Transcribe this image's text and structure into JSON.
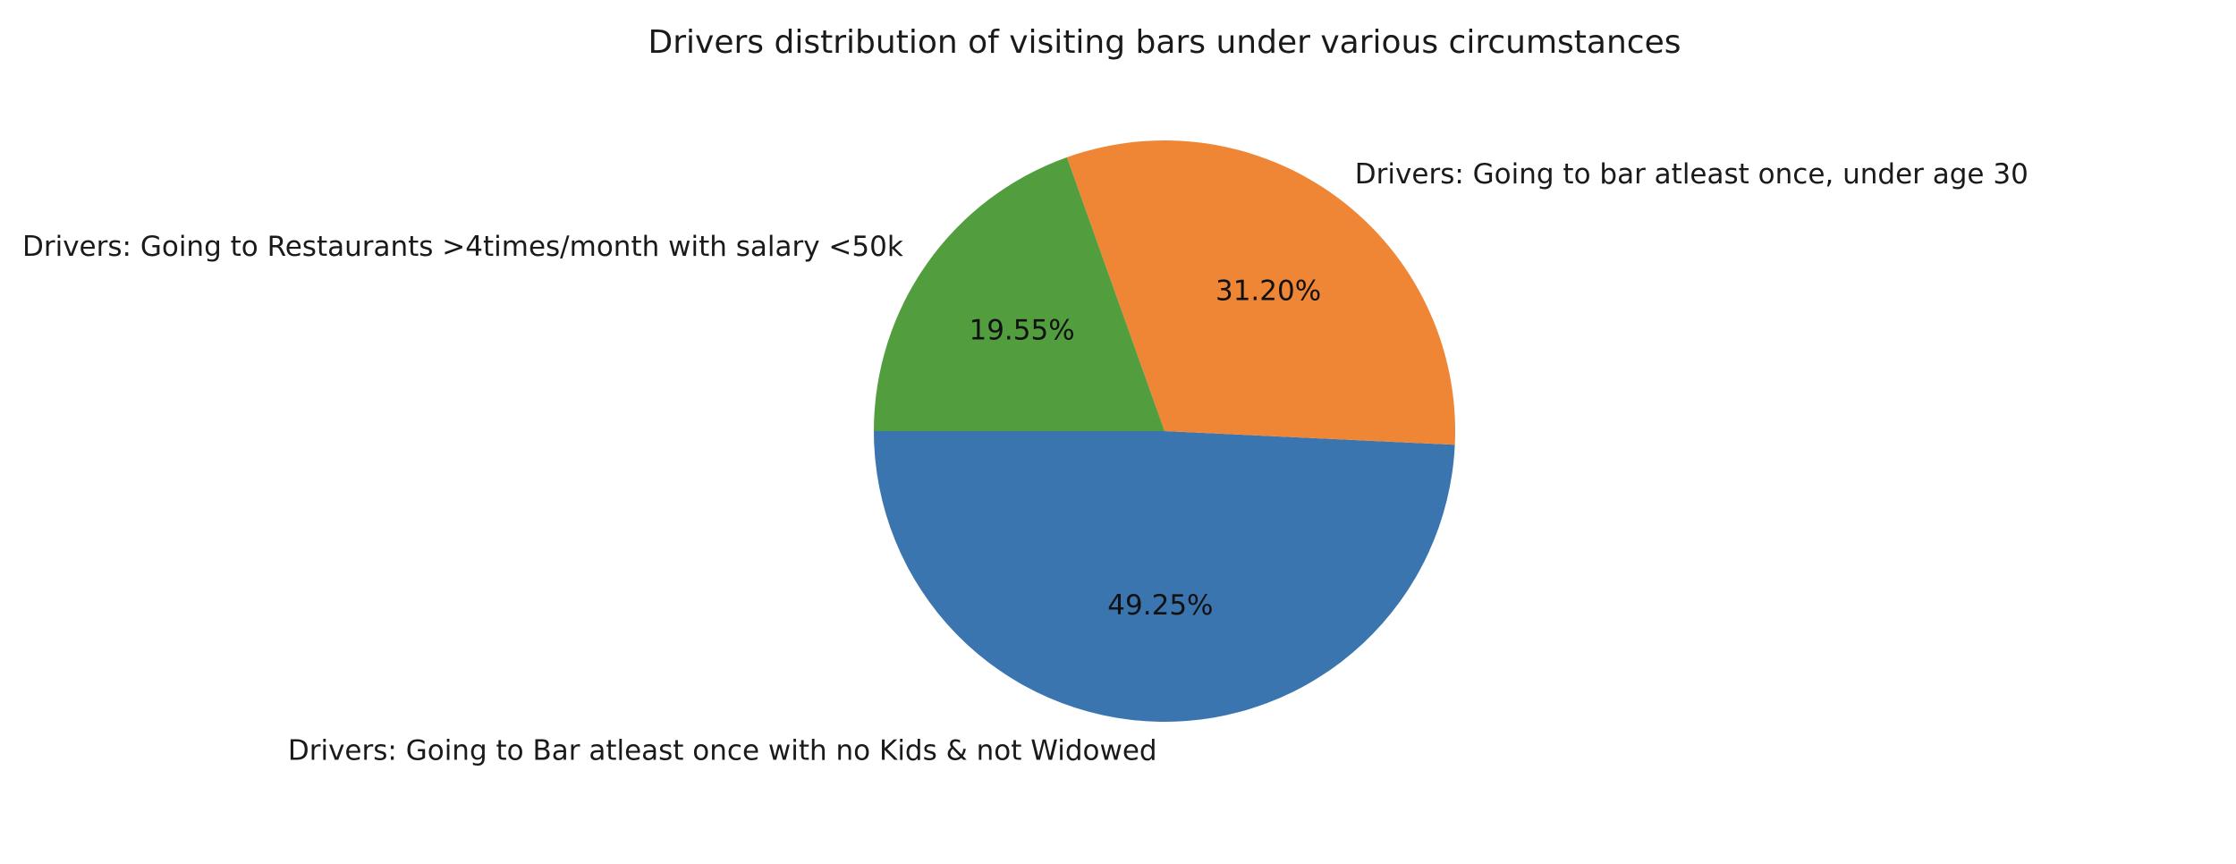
{
  "chart_data": {
    "type": "pie",
    "title": "Drivers distribution of visiting bars under various circumstances",
    "start_angle_deg": 180,
    "direction": "counterclockwise",
    "slices": [
      {
        "label": "Drivers: Going to Bar atleast once with no Kids & not Widowed",
        "value": 49.25,
        "pct_label": "49.25%",
        "color": "#3a75af"
      },
      {
        "label": "Drivers: Going to bar atleast once, under age 30",
        "value": 31.2,
        "pct_label": "31.20%",
        "color": "#ef8636"
      },
      {
        "label": "Drivers: Going to Restaurants >4times/month with salary <50k",
        "value": 19.55,
        "pct_label": "19.55%",
        "color": "#529e3f"
      }
    ]
  }
}
